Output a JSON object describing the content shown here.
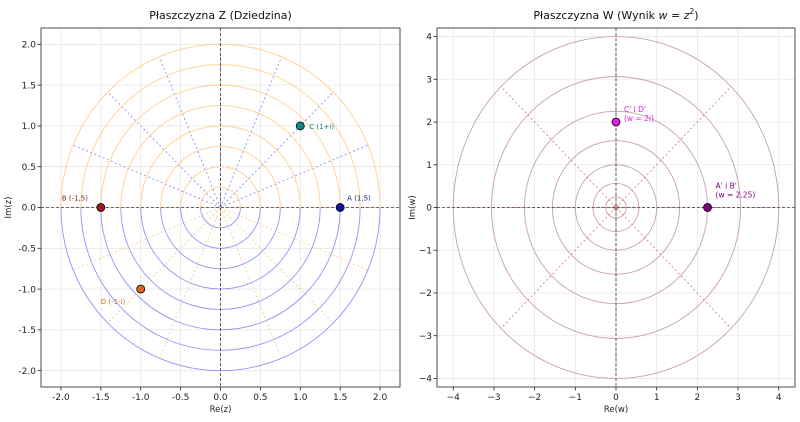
{
  "chart_data": [
    {
      "type": "scatter",
      "title": "Płaszczyzna Z (Dziedzina)",
      "xlabel": "Re(z)",
      "ylabel": "Im(z)",
      "xlim": [
        -2.25,
        2.25
      ],
      "ylim": [
        -2.2,
        2.2
      ],
      "xticks": [
        "-2.0",
        "-1.5",
        "-1.0",
        "-0.5",
        "0.0",
        "0.5",
        "1.0",
        "1.5",
        "2.0"
      ],
      "yticks": [
        "-2.0",
        "-1.5",
        "-1.0",
        "-0.5",
        "0.0",
        "0.5",
        "1.0",
        "1.5",
        "2.0"
      ],
      "grid": true,
      "polar_grid": {
        "upper_half": {
          "color": "#8080ff",
          "radii": [
            0.25,
            0.5,
            0.75,
            1.0,
            1.25,
            1.5,
            1.75,
            2.0
          ],
          "rays_deg": [
            0,
            22.5,
            45,
            67.5,
            90,
            112.5,
            135,
            157.5,
            180
          ]
        },
        "lower_half": {
          "color": "#ffc87a",
          "radii": [
            0.25,
            0.5,
            0.75,
            1.0,
            1.25,
            1.5,
            1.75,
            2.0
          ],
          "rays_deg": [
            180,
            202.5,
            225,
            247.5,
            270,
            292.5,
            315,
            337.5,
            360
          ]
        }
      },
      "points": [
        {
          "x": 1.5,
          "y": 0,
          "label": "A (1,5)",
          "color": "#1010a0",
          "label_color": "#1a1a8c"
        },
        {
          "x": -1.5,
          "y": 0,
          "label": "B (-1,5)",
          "color": "#a01818",
          "label_color": "#8b1a1a"
        },
        {
          "x": 1.0,
          "y": 1.0,
          "label": "C (1+i)",
          "color": "#0e8a8a",
          "label_color": "#138080"
        },
        {
          "x": -1.0,
          "y": -1.0,
          "label": "D (-1-i)",
          "color": "#d2691e",
          "label_color": "#d2691e"
        }
      ]
    },
    {
      "type": "scatter",
      "title": "Płaszczyzna W (Wynik w = z²)",
      "title_prefix": "Płaszczyzna W (Wynik ",
      "title_var": "w",
      "title_eq": " = ",
      "title_var2": "z",
      "title_sup": "2",
      "title_suffix": ")",
      "xlabel": "Re(w)",
      "ylabel": "Im(w)",
      "xlim": [
        -4.4,
        4.4
      ],
      "ylim": [
        -4.2,
        4.2
      ],
      "xticks": [
        "−4",
        "−3",
        "−2",
        "−1",
        "0",
        "1",
        "2",
        "3",
        "4"
      ],
      "yticks": [
        "−4",
        "−3",
        "−2",
        "−1",
        "0",
        "1",
        "2",
        "3",
        "4"
      ],
      "grid": true,
      "polar_grid": {
        "color": "#c8a0b0",
        "radii": [
          0.0625,
          0.25,
          0.5625,
          1.0,
          1.5625,
          2.25,
          3.0625,
          4.0
        ],
        "rays_deg": [
          0,
          45,
          90,
          135,
          180,
          225,
          270,
          315
        ]
      },
      "points": [
        {
          "x": 2.25,
          "y": 0,
          "label": "A' i B'",
          "label2": "(w = 2.25)",
          "color": "#800080",
          "label_color": "#800080"
        },
        {
          "x": 0,
          "y": 2,
          "label": "C' i D'",
          "label2": "(w = 2i)",
          "color": "#e020e0",
          "label_color": "#e020e0"
        }
      ]
    }
  ]
}
